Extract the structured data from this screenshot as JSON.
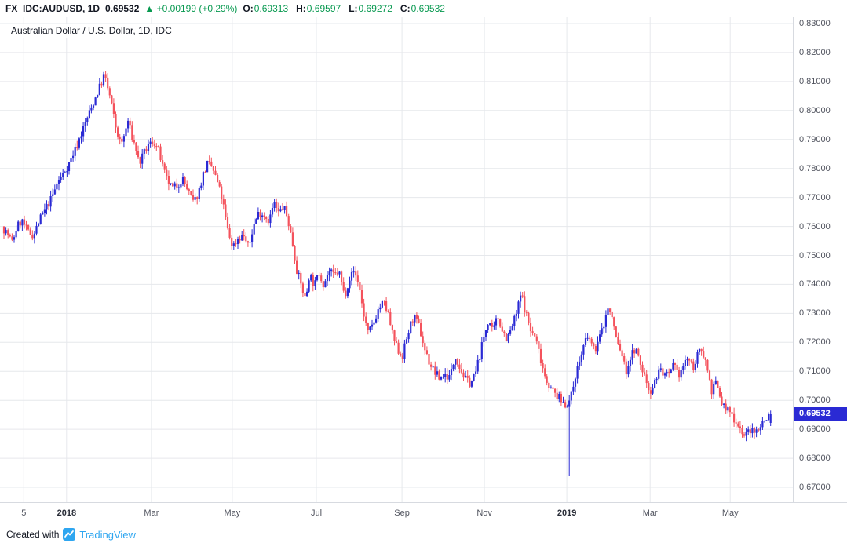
{
  "header": {
    "symbol": "FX_IDC:AUDUSD, 1D",
    "last_price": "0.69532",
    "change_arrow": "▲",
    "change": "+0.00199 (+0.29%)",
    "ohlc": [
      {
        "label": "O:",
        "value": "0.69313"
      },
      {
        "label": "H:",
        "value": "0.69597"
      },
      {
        "label": "L:",
        "value": "0.69272"
      },
      {
        "label": "C:",
        "value": "0.69532"
      }
    ]
  },
  "legend": {
    "title": "Australian Dollar / U.S. Dollar, 1D, IDC"
  },
  "footer": {
    "created_with": "Created with",
    "brand": "TradingView"
  },
  "colors": {
    "up_candle": "#2A2AD4",
    "down_candle": "#F4525C",
    "grid": "#E6E8EC",
    "axis_text": "#50535E",
    "green": "#089950",
    "price_line": "#3C3C3C",
    "price_tag_bg": "#2A2AD4",
    "tradingview_blue": "#2EA6F0"
  },
  "chart_data": {
    "type": "candlestick",
    "title": "Australian Dollar / U.S. Dollar, 1D, IDC",
    "symbol": "AUD/USD",
    "timeframe": "1D",
    "source": "IDC",
    "ylim": [
      0.67,
      0.83
    ],
    "y_ticks": [
      "0.83000",
      "0.82000",
      "0.81000",
      "0.80000",
      "0.79000",
      "0.78000",
      "0.77000",
      "0.76000",
      "0.75000",
      "0.74000",
      "0.73000",
      "0.72000",
      "0.71000",
      "0.70000",
      "0.69000",
      "0.68000",
      "0.67000"
    ],
    "x_ticks": [
      {
        "label": "5",
        "f": 0.03,
        "major": false
      },
      {
        "label": "2018",
        "f": 0.084,
        "major": true
      },
      {
        "label": "Mar",
        "f": 0.191,
        "major": false
      },
      {
        "label": "May",
        "f": 0.293,
        "major": false
      },
      {
        "label": "Jul",
        "f": 0.399,
        "major": false
      },
      {
        "label": "Sep",
        "f": 0.507,
        "major": false
      },
      {
        "label": "Nov",
        "f": 0.611,
        "major": false
      },
      {
        "label": "2019",
        "f": 0.715,
        "major": true
      },
      {
        "label": "Mar",
        "f": 0.82,
        "major": false
      },
      {
        "label": "May",
        "f": 0.921,
        "major": false
      }
    ],
    "price_line": {
      "value": 0.69532,
      "label": "0.69532"
    },
    "current_ohlc": {
      "open": 0.69313,
      "high": 0.69597,
      "low": 0.69272,
      "close": 0.69532
    },
    "key_points": {
      "peak": {
        "f": 0.134,
        "price": 0.8135,
        "hint": "late Jan 2018 high"
      },
      "flash_crash": {
        "f": 0.719,
        "price": 0.674,
        "hint": "early Jan 2019 flash-crash wick"
      },
      "low": {
        "f": 0.942,
        "price": 0.6875,
        "hint": "late May 2019 low"
      },
      "current": {
        "f": 0.972,
        "price": 0.69532
      }
    },
    "anchors": [
      [
        0.005,
        0.76
      ],
      [
        0.012,
        0.7575
      ],
      [
        0.018,
        0.7545
      ],
      [
        0.024,
        0.76
      ],
      [
        0.03,
        0.762
      ],
      [
        0.038,
        0.758
      ],
      [
        0.045,
        0.757
      ],
      [
        0.052,
        0.762
      ],
      [
        0.06,
        0.766
      ],
      [
        0.068,
        0.77
      ],
      [
        0.075,
        0.775
      ],
      [
        0.082,
        0.778
      ],
      [
        0.09,
        0.782
      ],
      [
        0.098,
        0.787
      ],
      [
        0.105,
        0.792
      ],
      [
        0.112,
        0.797
      ],
      [
        0.118,
        0.801
      ],
      [
        0.125,
        0.806
      ],
      [
        0.131,
        0.81
      ],
      [
        0.134,
        0.8125
      ],
      [
        0.138,
        0.808
      ],
      [
        0.142,
        0.804
      ],
      [
        0.148,
        0.795
      ],
      [
        0.155,
        0.788
      ],
      [
        0.16,
        0.792
      ],
      [
        0.164,
        0.7965
      ],
      [
        0.17,
        0.79
      ],
      [
        0.175,
        0.786
      ],
      [
        0.178,
        0.7815
      ],
      [
        0.184,
        0.785
      ],
      [
        0.19,
        0.788
      ],
      [
        0.196,
        0.7895
      ],
      [
        0.203,
        0.786
      ],
      [
        0.208,
        0.78
      ],
      [
        0.213,
        0.776
      ],
      [
        0.22,
        0.773
      ],
      [
        0.227,
        0.7745
      ],
      [
        0.233,
        0.7765
      ],
      [
        0.24,
        0.772
      ],
      [
        0.247,
        0.768
      ],
      [
        0.253,
        0.772
      ],
      [
        0.259,
        0.778
      ],
      [
        0.264,
        0.7815
      ],
      [
        0.27,
        0.7805
      ],
      [
        0.277,
        0.775
      ],
      [
        0.283,
        0.769
      ],
      [
        0.29,
        0.7585
      ],
      [
        0.296,
        0.753
      ],
      [
        0.303,
        0.756
      ],
      [
        0.31,
        0.757
      ],
      [
        0.316,
        0.7525
      ],
      [
        0.322,
        0.76
      ],
      [
        0.329,
        0.765
      ],
      [
        0.336,
        0.764
      ],
      [
        0.342,
        0.762
      ],
      [
        0.348,
        0.768
      ],
      [
        0.354,
        0.7645
      ],
      [
        0.36,
        0.767
      ],
      [
        0.366,
        0.762
      ],
      [
        0.371,
        0.755
      ],
      [
        0.377,
        0.745
      ],
      [
        0.383,
        0.739
      ],
      [
        0.388,
        0.7345
      ],
      [
        0.393,
        0.744
      ],
      [
        0.399,
        0.7395
      ],
      [
        0.405,
        0.744
      ],
      [
        0.411,
        0.74
      ],
      [
        0.417,
        0.7445
      ],
      [
        0.424,
        0.743
      ],
      [
        0.43,
        0.7445
      ],
      [
        0.437,
        0.736
      ],
      [
        0.443,
        0.742
      ],
      [
        0.449,
        0.7445
      ],
      [
        0.455,
        0.7405
      ],
      [
        0.461,
        0.73
      ],
      [
        0.467,
        0.723
      ],
      [
        0.473,
        0.726
      ],
      [
        0.479,
        0.731
      ],
      [
        0.486,
        0.734
      ],
      [
        0.492,
        0.73
      ],
      [
        0.498,
        0.722
      ],
      [
        0.504,
        0.7175
      ],
      [
        0.51,
        0.715
      ],
      [
        0.517,
        0.723
      ],
      [
        0.524,
        0.729
      ],
      [
        0.531,
        0.7255
      ],
      [
        0.538,
        0.718
      ],
      [
        0.544,
        0.713
      ],
      [
        0.55,
        0.71
      ],
      [
        0.557,
        0.7075
      ],
      [
        0.563,
        0.709
      ],
      [
        0.57,
        0.708
      ],
      [
        0.577,
        0.7155
      ],
      [
        0.583,
        0.711
      ],
      [
        0.59,
        0.707
      ],
      [
        0.596,
        0.706
      ],
      [
        0.602,
        0.709
      ],
      [
        0.608,
        0.716
      ],
      [
        0.614,
        0.723
      ],
      [
        0.619,
        0.728
      ],
      [
        0.624,
        0.723
      ],
      [
        0.63,
        0.729
      ],
      [
        0.636,
        0.7245
      ],
      [
        0.642,
        0.721
      ],
      [
        0.648,
        0.725
      ],
      [
        0.654,
        0.73
      ],
      [
        0.66,
        0.737
      ],
      [
        0.666,
        0.73
      ],
      [
        0.672,
        0.724
      ],
      [
        0.678,
        0.7215
      ],
      [
        0.684,
        0.715
      ],
      [
        0.69,
        0.7085
      ],
      [
        0.697,
        0.704
      ],
      [
        0.704,
        0.702
      ],
      [
        0.71,
        0.7
      ],
      [
        0.716,
        0.6985
      ],
      [
        0.722,
        0.7
      ],
      [
        0.728,
        0.7085
      ],
      [
        0.734,
        0.714
      ],
      [
        0.74,
        0.72
      ],
      [
        0.746,
        0.7215
      ],
      [
        0.752,
        0.717
      ],
      [
        0.758,
        0.721
      ],
      [
        0.764,
        0.726
      ],
      [
        0.769,
        0.732
      ],
      [
        0.775,
        0.728
      ],
      [
        0.781,
        0.72
      ],
      [
        0.787,
        0.716
      ],
      [
        0.792,
        0.7095
      ],
      [
        0.798,
        0.715
      ],
      [
        0.804,
        0.718
      ],
      [
        0.81,
        0.7125
      ],
      [
        0.816,
        0.708
      ],
      [
        0.822,
        0.703
      ],
      [
        0.828,
        0.706
      ],
      [
        0.834,
        0.711
      ],
      [
        0.84,
        0.709
      ],
      [
        0.846,
        0.708
      ],
      [
        0.852,
        0.712
      ],
      [
        0.858,
        0.7085
      ],
      [
        0.864,
        0.7115
      ],
      [
        0.87,
        0.715
      ],
      [
        0.876,
        0.711
      ],
      [
        0.882,
        0.715
      ],
      [
        0.888,
        0.718
      ],
      [
        0.894,
        0.712
      ],
      [
        0.9,
        0.7035
      ],
      [
        0.906,
        0.706
      ],
      [
        0.912,
        0.6995
      ],
      [
        0.918,
        0.697
      ],
      [
        0.924,
        0.696
      ],
      [
        0.93,
        0.693
      ],
      [
        0.936,
        0.6905
      ],
      [
        0.942,
        0.6875
      ],
      [
        0.948,
        0.69
      ],
      [
        0.954,
        0.6885
      ],
      [
        0.96,
        0.691
      ],
      [
        0.966,
        0.6928
      ],
      [
        0.972,
        0.6953
      ]
    ],
    "candles": 378,
    "seed": 7
  }
}
